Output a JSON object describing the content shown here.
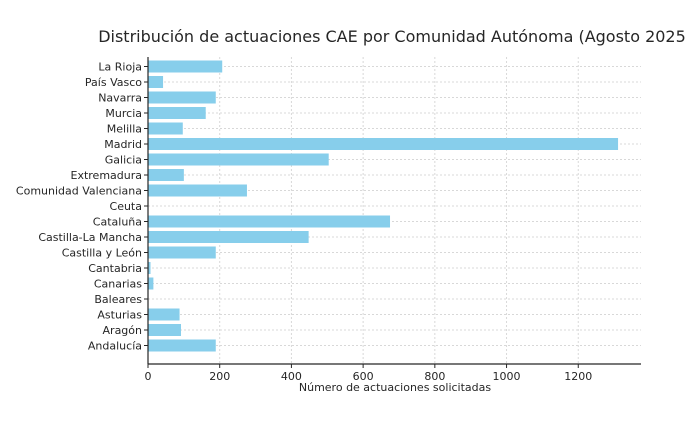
{
  "chart_data": {
    "type": "bar",
    "orientation": "horizontal",
    "title": "Distribución de actuaciones CAE por Comunidad Autónoma (Agosto 2025",
    "xlabel": "Número de actuaciones solicitadas",
    "ylabel": "",
    "xlim": [
      0,
      1375
    ],
    "xticks": [
      0,
      200,
      400,
      600,
      800,
      1000,
      1200
    ],
    "grid": true,
    "bar_color": "#87CEEB",
    "categories": [
      "La Rioja",
      "País Vasco",
      "Navarra",
      "Murcia",
      "Melilla",
      "Madrid",
      "Galicia",
      "Extremadura",
      "Comunidad Valenciana",
      "Ceuta",
      "Cataluña",
      "Castilla-La Mancha",
      "Castilla y León",
      "Cantabria",
      "Canarias",
      "Baleares",
      "Asturias",
      "Aragón",
      "Andalucía"
    ],
    "values": [
      207,
      42,
      189,
      161,
      97,
      1311,
      504,
      100,
      276,
      0,
      675,
      448,
      189,
      7,
      15,
      0,
      88,
      92,
      189
    ]
  }
}
